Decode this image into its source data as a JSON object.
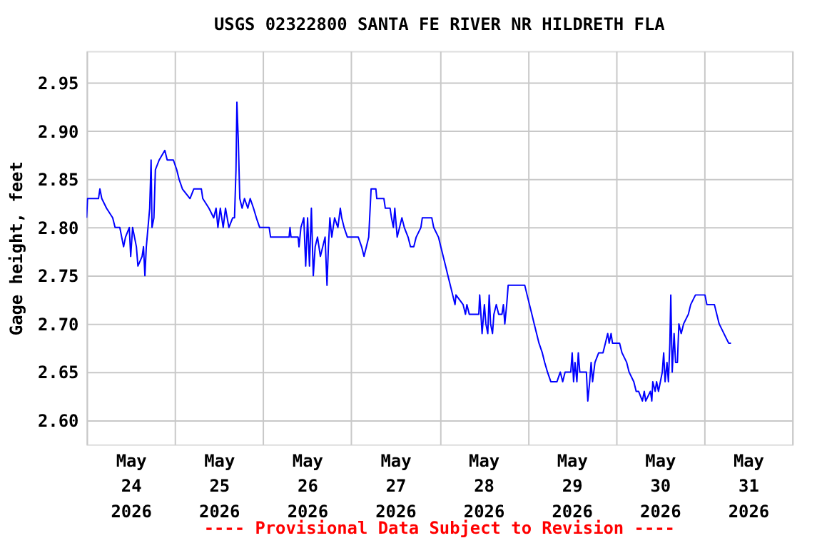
{
  "chart_data": {
    "type": "line",
    "title": "USGS 02322800 SANTA FE RIVER NR HILDRETH FLA",
    "ylabel": "Gage height, feet",
    "annotations": [
      "---- Provisional Data Subject to Revision ----"
    ],
    "xlim": [
      "2026-05-24T00:00",
      "2026-06-01T00:00"
    ],
    "xticks": [
      {
        "value": "2026-05-24T00:00",
        "label": null
      },
      {
        "value": "2026-05-24T12:00",
        "label": "May 24 2026"
      },
      {
        "value": "2026-05-25T00:00",
        "label": null
      },
      {
        "value": "2026-05-25T12:00",
        "label": "May 25 2026"
      },
      {
        "value": "2026-05-26T00:00",
        "label": null
      },
      {
        "value": "2026-05-26T12:00",
        "label": "May 26 2026"
      },
      {
        "value": "2026-05-27T00:00",
        "label": null
      },
      {
        "value": "2026-05-27T12:00",
        "label": "May 27 2026"
      },
      {
        "value": "2026-05-28T00:00",
        "label": null
      },
      {
        "value": "2026-05-28T12:00",
        "label": "May 28 2026"
      },
      {
        "value": "2026-05-29T00:00",
        "label": null
      },
      {
        "value": "2026-05-29T12:00",
        "label": "May 29 2026"
      },
      {
        "value": "2026-05-30T00:00",
        "label": null
      },
      {
        "value": "2026-05-30T12:00",
        "label": "May 30 2026"
      },
      {
        "value": "2026-05-31T00:00",
        "label": null
      },
      {
        "value": "2026-05-31T12:00",
        "label": "May 31 2026"
      },
      {
        "value": "2026-06-01T00:00",
        "label": null
      }
    ],
    "ylim": [
      2.575,
      2.983
    ],
    "yticks": [
      {
        "value": 2.6,
        "label": "2.60"
      },
      {
        "value": 2.65,
        "label": "2.65"
      },
      {
        "value": 2.7,
        "label": "2.70"
      },
      {
        "value": 2.75,
        "label": "2.75"
      },
      {
        "value": 2.8,
        "label": "2.80"
      },
      {
        "value": 2.85,
        "label": "2.85"
      },
      {
        "value": 2.9,
        "label": "2.90"
      },
      {
        "value": 2.95,
        "label": "2.95"
      }
    ],
    "grid": true,
    "x": [
      "2026-05-24T00:00",
      "2026-05-24T00:15",
      "2026-05-24T03:14",
      "2026-05-24T03:37",
      "2026-05-24T04:08",
      "2026-05-24T05:25",
      "2026-05-24T07:06",
      "2026-05-24T07:45",
      "2026-05-24T09:02",
      "2026-05-24T10:04",
      "2026-05-24T10:35",
      "2026-05-24T11:37",
      "2026-05-24T12:00",
      "2026-05-24T12:31",
      "2026-05-24T13:33",
      "2026-05-24T13:58",
      "2026-05-24T15:06",
      "2026-05-24T15:29",
      "2026-05-24T15:52",
      "2026-05-24T16:15",
      "2026-05-24T17:10",
      "2026-05-24T17:33",
      "2026-05-24T17:48",
      "2026-05-24T18:19",
      "2026-05-24T18:43",
      "2026-05-24T19:45",
      "2026-05-24T21:17",
      "2026-05-24T21:56",
      "2026-05-24T23:37",
      "2026-05-25T00:31",
      "2026-05-25T01:10",
      "2026-05-25T02:04",
      "2026-05-25T04:08",
      "2026-05-25T05:10",
      "2026-05-25T07:14",
      "2026-05-25T07:37",
      "2026-05-25T09:17",
      "2026-05-25T10:35",
      "2026-05-25T11:14",
      "2026-05-25T11:44",
      "2026-05-25T12:23",
      "2026-05-25T13:10",
      "2026-05-25T13:48",
      "2026-05-25T14:43",
      "2026-05-25T15:45",
      "2026-05-25T16:15",
      "2026-05-25T16:39",
      "2026-05-25T16:54",
      "2026-05-25T17:17",
      "2026-05-25T17:41",
      "2026-05-25T18:19",
      "2026-05-25T18:58",
      "2026-05-25T19:52",
      "2026-05-25T20:31",
      "2026-05-25T21:25",
      "2026-05-25T22:12",
      "2026-05-25T23:06",
      "2026-05-26T01:41",
      "2026-05-26T02:04",
      "2026-05-26T07:06",
      "2026-05-26T07:21",
      "2026-05-26T07:37",
      "2026-05-26T09:33",
      "2026-05-26T09:48",
      "2026-05-26T10:19",
      "2026-05-26T11:06",
      "2026-05-26T11:37",
      "2026-05-26T12:08",
      "2026-05-26T12:39",
      "2026-05-26T13:10",
      "2026-05-26T13:41",
      "2026-05-26T14:12",
      "2026-05-26T14:50",
      "2026-05-26T15:37",
      "2026-05-26T16:54",
      "2026-05-26T17:25",
      "2026-05-26T17:48",
      "2026-05-26T18:12",
      "2026-05-26T18:43",
      "2026-05-26T19:29",
      "2026-05-26T20:23",
      "2026-05-26T21:02",
      "2026-05-26T21:25",
      "2026-05-26T22:04",
      "2026-05-26T22:58",
      "2026-05-27T01:56",
      "2026-05-27T02:50",
      "2026-05-27T03:29",
      "2026-05-27T04:08",
      "2026-05-27T04:46",
      "2026-05-27T05:25",
      "2026-05-27T06:43",
      "2026-05-27T06:58",
      "2026-05-27T08:54",
      "2026-05-27T09:17",
      "2026-05-27T10:35",
      "2026-05-27T10:58",
      "2026-05-27T11:29",
      "2026-05-27T11:52",
      "2026-05-27T12:31",
      "2026-05-27T13:48",
      "2026-05-27T14:27",
      "2026-05-27T15:29",
      "2026-05-27T16:08",
      "2026-05-27T17:02",
      "2026-05-27T17:41",
      "2026-05-27T18:58",
      "2026-05-27T19:21",
      "2026-05-27T21:56",
      "2026-05-27T22:27",
      "2026-05-27T23:45",
      "2026-05-28T00:23",
      "2026-05-28T01:02",
      "2026-05-28T01:41",
      "2026-05-28T02:19",
      "2026-05-28T02:58",
      "2026-05-28T03:37",
      "2026-05-28T04:15",
      "2026-05-28T04:31",
      "2026-05-28T06:27",
      "2026-05-28T07:06",
      "2026-05-28T07:29",
      "2026-05-28T08:08",
      "2026-05-28T10:43",
      "2026-05-28T10:58",
      "2026-05-28T11:37",
      "2026-05-28T12:15",
      "2026-05-28T12:39",
      "2026-05-28T13:10",
      "2026-05-28T13:33",
      "2026-05-28T13:56",
      "2026-05-28T14:27",
      "2026-05-28T14:50",
      "2026-05-28T15:29",
      "2026-05-28T16:08",
      "2026-05-28T17:02",
      "2026-05-28T17:25",
      "2026-05-28T17:48",
      "2026-05-28T18:19",
      "2026-05-28T18:43",
      "2026-05-28T23:14",
      "2026-05-28T23:52",
      "2026-05-29T00:31",
      "2026-05-29T01:10",
      "2026-05-29T01:48",
      "2026-05-29T02:27",
      "2026-05-29T03:06",
      "2026-05-29T04:00",
      "2026-05-29T04:39",
      "2026-05-29T05:25",
      "2026-05-29T06:19",
      "2026-05-29T08:00",
      "2026-05-29T08:54",
      "2026-05-29T09:33",
      "2026-05-29T10:12",
      "2026-05-29T11:45",
      "2026-05-29T12:08",
      "2026-05-29T12:31",
      "2026-05-29T12:54",
      "2026-05-29T13:25",
      "2026-05-29T13:48",
      "2026-05-29T14:12",
      "2026-05-29T16:00",
      "2026-05-29T16:23",
      "2026-05-29T16:54",
      "2026-05-29T17:17",
      "2026-05-29T17:41",
      "2026-05-29T18:20",
      "2026-05-29T19:21",
      "2026-05-29T20:31",
      "2026-05-29T21:10",
      "2026-05-29T21:48",
      "2026-05-29T22:12",
      "2026-05-29T22:43",
      "2026-05-29T23:06",
      "2026-05-30T01:02",
      "2026-05-30T01:41",
      "2026-05-30T02:58",
      "2026-05-30T03:37",
      "2026-05-30T04:54",
      "2026-05-30T05:33",
      "2026-05-30T06:12",
      "2026-05-30T07:14",
      "2026-05-30T07:45",
      "2026-05-30T08:08",
      "2026-05-30T09:25",
      "2026-05-30T09:48",
      "2026-05-30T10:04",
      "2026-05-30T10:43",
      "2026-05-30T11:06",
      "2026-05-30T11:37",
      "2026-05-30T12:39",
      "2026-05-30T13:02",
      "2026-05-30T13:25",
      "2026-05-30T13:56",
      "2026-05-30T14:19",
      "2026-05-30T14:43",
      "2026-05-30T14:58",
      "2026-05-30T15:21",
      "2026-05-30T15:52",
      "2026-05-30T16:16",
      "2026-05-30T16:46",
      "2026-05-30T17:10",
      "2026-05-30T17:48",
      "2026-05-30T18:27",
      "2026-05-30T19:45",
      "2026-05-30T20:23",
      "2026-05-30T21:41",
      "2026-05-31T00:16",
      "2026-05-31T00:47",
      "2026-05-31T02:50",
      "2026-05-31T03:29",
      "2026-05-31T04:08",
      "2026-05-31T05:25",
      "2026-05-31T06:43",
      "2026-05-31T07:21"
    ],
    "series": [
      {
        "color": "#0000ff",
        "values": [
          2.81,
          2.83,
          2.83,
          2.84,
          2.83,
          2.82,
          2.81,
          2.8,
          2.8,
          2.78,
          2.79,
          2.8,
          2.77,
          2.8,
          2.78,
          2.76,
          2.77,
          2.78,
          2.75,
          2.78,
          2.82,
          2.87,
          2.8,
          2.81,
          2.86,
          2.87,
          2.88,
          2.87,
          2.87,
          2.86,
          2.85,
          2.84,
          2.83,
          2.84,
          2.84,
          2.83,
          2.82,
          2.81,
          2.82,
          2.8,
          2.82,
          2.8,
          2.82,
          2.8,
          2.81,
          2.81,
          2.86,
          2.93,
          2.89,
          2.83,
          2.82,
          2.83,
          2.82,
          2.83,
          2.82,
          2.81,
          2.8,
          2.8,
          2.79,
          2.79,
          2.8,
          2.79,
          2.79,
          2.78,
          2.8,
          2.81,
          2.76,
          2.81,
          2.76,
          2.82,
          2.75,
          2.78,
          2.79,
          2.77,
          2.79,
          2.74,
          2.78,
          2.81,
          2.79,
          2.81,
          2.8,
          2.82,
          2.81,
          2.8,
          2.79,
          2.79,
          2.78,
          2.77,
          2.78,
          2.79,
          2.84,
          2.84,
          2.83,
          2.83,
          2.82,
          2.82,
          2.81,
          2.8,
          2.82,
          2.79,
          2.81,
          2.8,
          2.79,
          2.78,
          2.78,
          2.79,
          2.8,
          2.81,
          2.81,
          2.8,
          2.79,
          2.78,
          2.77,
          2.76,
          2.75,
          2.74,
          2.73,
          2.72,
          2.73,
          2.72,
          2.71,
          2.72,
          2.71,
          2.71,
          2.73,
          2.69,
          2.72,
          2.7,
          2.69,
          2.73,
          2.7,
          2.69,
          2.71,
          2.72,
          2.71,
          2.71,
          2.72,
          2.7,
          2.72,
          2.74,
          2.74,
          2.73,
          2.72,
          2.71,
          2.7,
          2.69,
          2.68,
          2.67,
          2.66,
          2.65,
          2.64,
          2.64,
          2.65,
          2.64,
          2.65,
          2.65,
          2.67,
          2.64,
          2.66,
          2.64,
          2.67,
          2.65,
          2.65,
          2.62,
          2.64,
          2.66,
          2.64,
          2.66,
          2.67,
          2.67,
          2.68,
          2.69,
          2.68,
          2.69,
          2.68,
          2.68,
          2.67,
          2.66,
          2.65,
          2.64,
          2.63,
          2.63,
          2.62,
          2.63,
          2.62,
          2.63,
          2.62,
          2.64,
          2.63,
          2.64,
          2.63,
          2.65,
          2.67,
          2.64,
          2.66,
          2.64,
          2.68,
          2.73,
          2.65,
          2.69,
          2.66,
          2.66,
          2.7,
          2.69,
          2.7,
          2.71,
          2.72,
          2.73,
          2.73,
          2.72,
          2.72,
          2.71,
          2.7,
          2.69,
          2.68,
          2.68
        ]
      }
    ]
  }
}
